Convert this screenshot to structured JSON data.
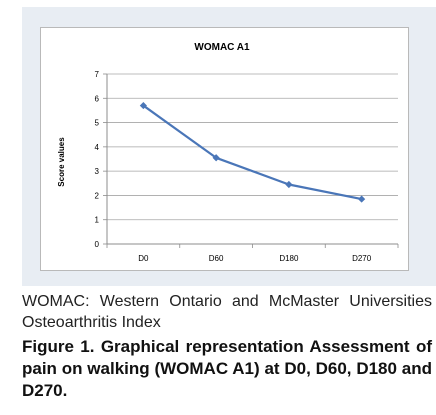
{
  "chart_data": {
    "type": "line",
    "title": "WOMAC A1",
    "xlabel": "",
    "ylabel": "Score values",
    "categories": [
      "D0",
      "D60",
      "D180",
      "D270"
    ],
    "series": [
      {
        "values": [
          5.7,
          3.55,
          2.45,
          1.85
        ],
        "color": "#4a76b8"
      }
    ],
    "ylim": [
      0,
      7
    ],
    "yticks": [
      "0",
      "1",
      "2",
      "3",
      "4",
      "5",
      "6",
      "7"
    ],
    "grid": true,
    "legend": "none"
  },
  "abbreviation_text": "WOMAC: Western Ontario and McMaster Universities Osteoarthritis Index",
  "caption_text": "Figure 1. Graphical representation Assessment of pain on walking (WOMAC A1) at D0, D60, D180 and D270."
}
